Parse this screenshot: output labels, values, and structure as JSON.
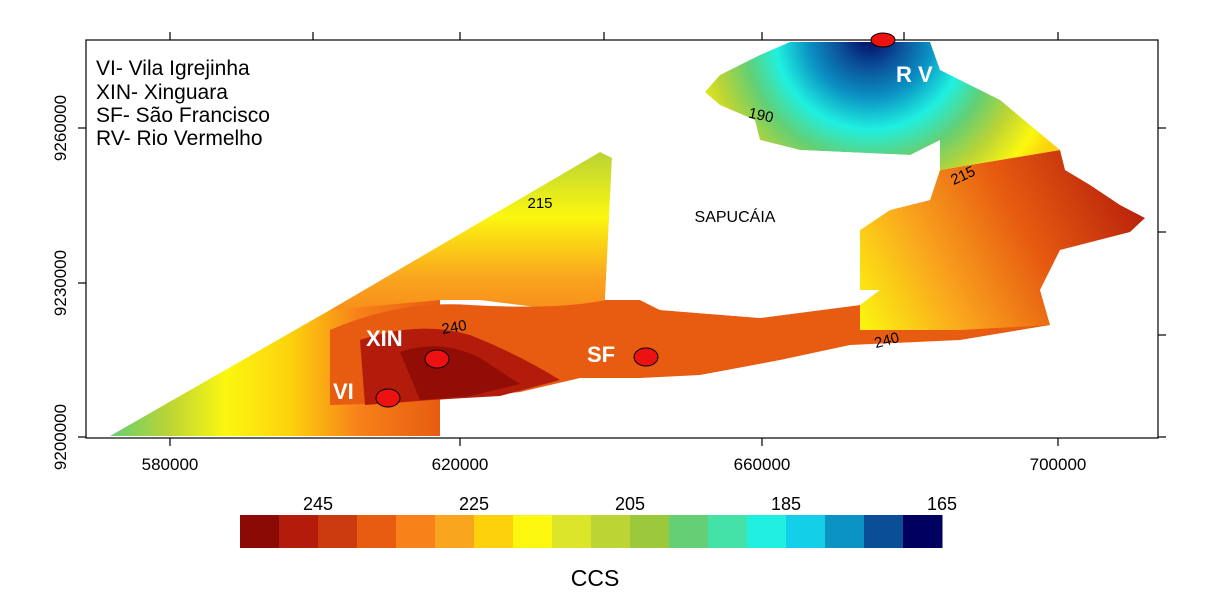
{
  "legend_box": {
    "lines": [
      "VI- Vila Igrejinha",
      "XIN- Xinguara",
      "SF- São Francisco",
      "RV- Rio Vermelho"
    ]
  },
  "axes": {
    "x_ticks": [
      "580000",
      "620000",
      "660000",
      "700000"
    ],
    "y_ticks": [
      "9200000",
      "9230000",
      "9260000"
    ]
  },
  "map": {
    "region_label": "SAPUCÁIA",
    "towns": [
      {
        "code": "VI",
        "label": "VI"
      },
      {
        "code": "XIN",
        "label": "XIN"
      },
      {
        "code": "SF",
        "label": "SF"
      },
      {
        "code": "RV",
        "label": "R V"
      }
    ],
    "contour_labels": [
      "240",
      "240",
      "215",
      "215",
      "190"
    ]
  },
  "colorbar": {
    "tick_labels": [
      "245",
      "225",
      "205",
      "185",
      "165"
    ],
    "title": "CCS",
    "colors": [
      "#8b0a05",
      "#b31b0b",
      "#cc3a10",
      "#e75c10",
      "#f7821a",
      "#faa51e",
      "#fdd10c",
      "#fbf70f",
      "#dde52a",
      "#bcd434",
      "#9cc93b",
      "#64cf73",
      "#45e2a7",
      "#1ff0e0",
      "#14cfe8",
      "#0b93c4",
      "#0b4e98",
      "#000060"
    ]
  }
}
